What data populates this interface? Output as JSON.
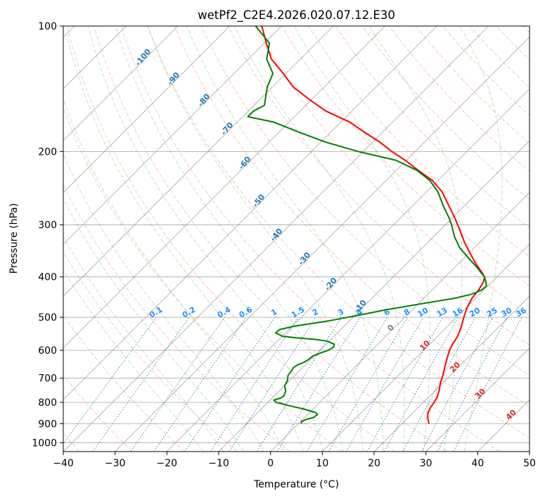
{
  "chart_data": {
    "type": "skew-t",
    "title": "wetPf2_C2E4.2026.020.07.12.E30",
    "xlabel": "Temperature (°C)",
    "ylabel": "Pressure (hPa)",
    "xlim": [
      -40,
      50
    ],
    "ylim": [
      1050,
      100
    ],
    "x_ticks": [
      "−40",
      "−30",
      "−20",
      "−10",
      "0",
      "10",
      "20",
      "30",
      "40",
      "50"
    ],
    "x_tick_values": [
      -40,
      -30,
      -20,
      -10,
      0,
      10,
      20,
      30,
      40,
      50
    ],
    "y_ticks": [
      "1000",
      "900",
      "800",
      "700",
      "600",
      "500",
      "400",
      "300",
      "200",
      "100"
    ],
    "y_tick_values": [
      1000,
      900,
      800,
      700,
      600,
      500,
      400,
      300,
      200,
      100
    ],
    "skew_deg": 45,
    "colors": {
      "temperature": "#ff0000",
      "dewpoint": "#008000",
      "dry_adiabat": "#fa8f6f",
      "moist_adiabat": "#5cb85c",
      "mixing_ratio": "#1f77b4",
      "isotherm": "#808080",
      "dry_adiabat_label": "#d62728",
      "moist_adiabat_label": "#1f77b4",
      "mixing_label": "#1e90ff"
    },
    "dry_adiabat_labels": [
      "0",
      "10",
      "20",
      "30",
      "40"
    ],
    "dry_adiabat_label_values": [
      0,
      10,
      20,
      30,
      40
    ],
    "moist_adiabat_labels": [
      "-100",
      "-90",
      "-80",
      "-70",
      "-60",
      "-50",
      "-40",
      "-30",
      "-20",
      "-10"
    ],
    "moist_adiabat_label_values": [
      -100,
      -90,
      -80,
      -70,
      -60,
      -50,
      -40,
      -30,
      -20,
      -10
    ],
    "mixing_ratio_labels": [
      "0.1",
      "0.2",
      "0.4",
      "0.6",
      "1",
      "1.5",
      "2",
      "3",
      "4",
      "6",
      "8",
      "10",
      "13",
      "16",
      "20",
      "25",
      "30",
      "36"
    ],
    "mixing_ratio_values": [
      0.1,
      0.2,
      0.4,
      0.6,
      1,
      1.5,
      2,
      3,
      4,
      6,
      8,
      10,
      13,
      16,
      20,
      25,
      30,
      36
    ],
    "series": [
      {
        "name": "Temperature",
        "color": "#ff0000",
        "points": [
          [
            900,
            25.2
          ],
          [
            875,
            24.0
          ],
          [
            850,
            23.0
          ],
          [
            825,
            22.4
          ],
          [
            800,
            22.1
          ],
          [
            775,
            21.6
          ],
          [
            750,
            20.8
          ],
          [
            720,
            19.6
          ],
          [
            690,
            18.6
          ],
          [
            660,
            17.4
          ],
          [
            630,
            16.2
          ],
          [
            600,
            15.0
          ],
          [
            580,
            14.4
          ],
          [
            560,
            14.0
          ],
          [
            540,
            13.3
          ],
          [
            520,
            12.4
          ],
          [
            500,
            11.4
          ],
          [
            475,
            10.2
          ],
          [
            450,
            9.3
          ],
          [
            430,
            9.0
          ],
          [
            410,
            8.3
          ],
          [
            400,
            7.6
          ],
          [
            390,
            6.2
          ],
          [
            370,
            3.1
          ],
          [
            350,
            0.1
          ],
          [
            330,
            -3.0
          ],
          [
            310,
            -6.0
          ],
          [
            290,
            -9.3
          ],
          [
            270,
            -13.0
          ],
          [
            250,
            -17.0
          ],
          [
            235,
            -21.0
          ],
          [
            220,
            -26.5
          ],
          [
            210,
            -30.2
          ],
          [
            200,
            -34.5
          ],
          [
            190,
            -38.6
          ],
          [
            180,
            -43.4
          ],
          [
            170,
            -48.3
          ],
          [
            160,
            -55.0
          ],
          [
            150,
            -60.5
          ],
          [
            140,
            -66.0
          ],
          [
            130,
            -70.5
          ],
          [
            120,
            -75.6
          ],
          [
            110,
            -79.6
          ],
          [
            100,
            -83.8
          ]
        ]
      },
      {
        "name": "Dewpoint",
        "color": "#008000",
        "points": [
          [
            900,
            0.6
          ],
          [
            890,
            0.2
          ],
          [
            880,
            0.6
          ],
          [
            870,
            1.7
          ],
          [
            855,
            1.9
          ],
          [
            845,
            1.0
          ],
          [
            830,
            -1.8
          ],
          [
            815,
            -5.2
          ],
          [
            800,
            -8.4
          ],
          [
            790,
            -9.3
          ],
          [
            780,
            -8.3
          ],
          [
            770,
            -8.2
          ],
          [
            750,
            -8.8
          ],
          [
            730,
            -10.0
          ],
          [
            710,
            -10.4
          ],
          [
            690,
            -11.3
          ],
          [
            670,
            -11.6
          ],
          [
            660,
            -11.8
          ],
          [
            650,
            -11.5
          ],
          [
            640,
            -10.7
          ],
          [
            630,
            -10.4
          ],
          [
            620,
            -10.3
          ],
          [
            610,
            -9.5
          ],
          [
            600,
            -8.4
          ],
          [
            590,
            -8.0
          ],
          [
            580,
            -8.4
          ],
          [
            570,
            -10.5
          ],
          [
            565,
            -13.0
          ],
          [
            560,
            -17.0
          ],
          [
            555,
            -20.0
          ],
          [
            545,
            -21.9
          ],
          [
            535,
            -21.8
          ],
          [
            525,
            -19.5
          ],
          [
            510,
            -14.0
          ],
          [
            495,
            -9.5
          ],
          [
            480,
            -5.2
          ],
          [
            465,
            0.2
          ],
          [
            450,
            6.0
          ],
          [
            440,
            8.5
          ],
          [
            430,
            9.6
          ],
          [
            420,
            9.7
          ],
          [
            410,
            8.7
          ],
          [
            400,
            7.6
          ],
          [
            390,
            6.0
          ],
          [
            380,
            4.4
          ],
          [
            360,
            0.8
          ],
          [
            340,
            -2.9
          ],
          [
            320,
            -6.0
          ],
          [
            300,
            -8.8
          ],
          [
            290,
            -10.4
          ],
          [
            270,
            -14.1
          ],
          [
            250,
            -17.8
          ],
          [
            235,
            -21.5
          ],
          [
            222,
            -26.0
          ],
          [
            210,
            -32.0
          ],
          [
            200,
            -41.0
          ],
          [
            190,
            -49.0
          ],
          [
            180,
            -56.0
          ],
          [
            170,
            -63.0
          ],
          [
            165,
            -69.0
          ],
          [
            160,
            -69.0
          ],
          [
            155,
            -68.0
          ],
          [
            140,
            -71.0
          ],
          [
            130,
            -72.5
          ],
          [
            120,
            -76.5
          ],
          [
            110,
            -79.0
          ],
          [
            100,
            -85.0
          ]
        ]
      }
    ]
  }
}
